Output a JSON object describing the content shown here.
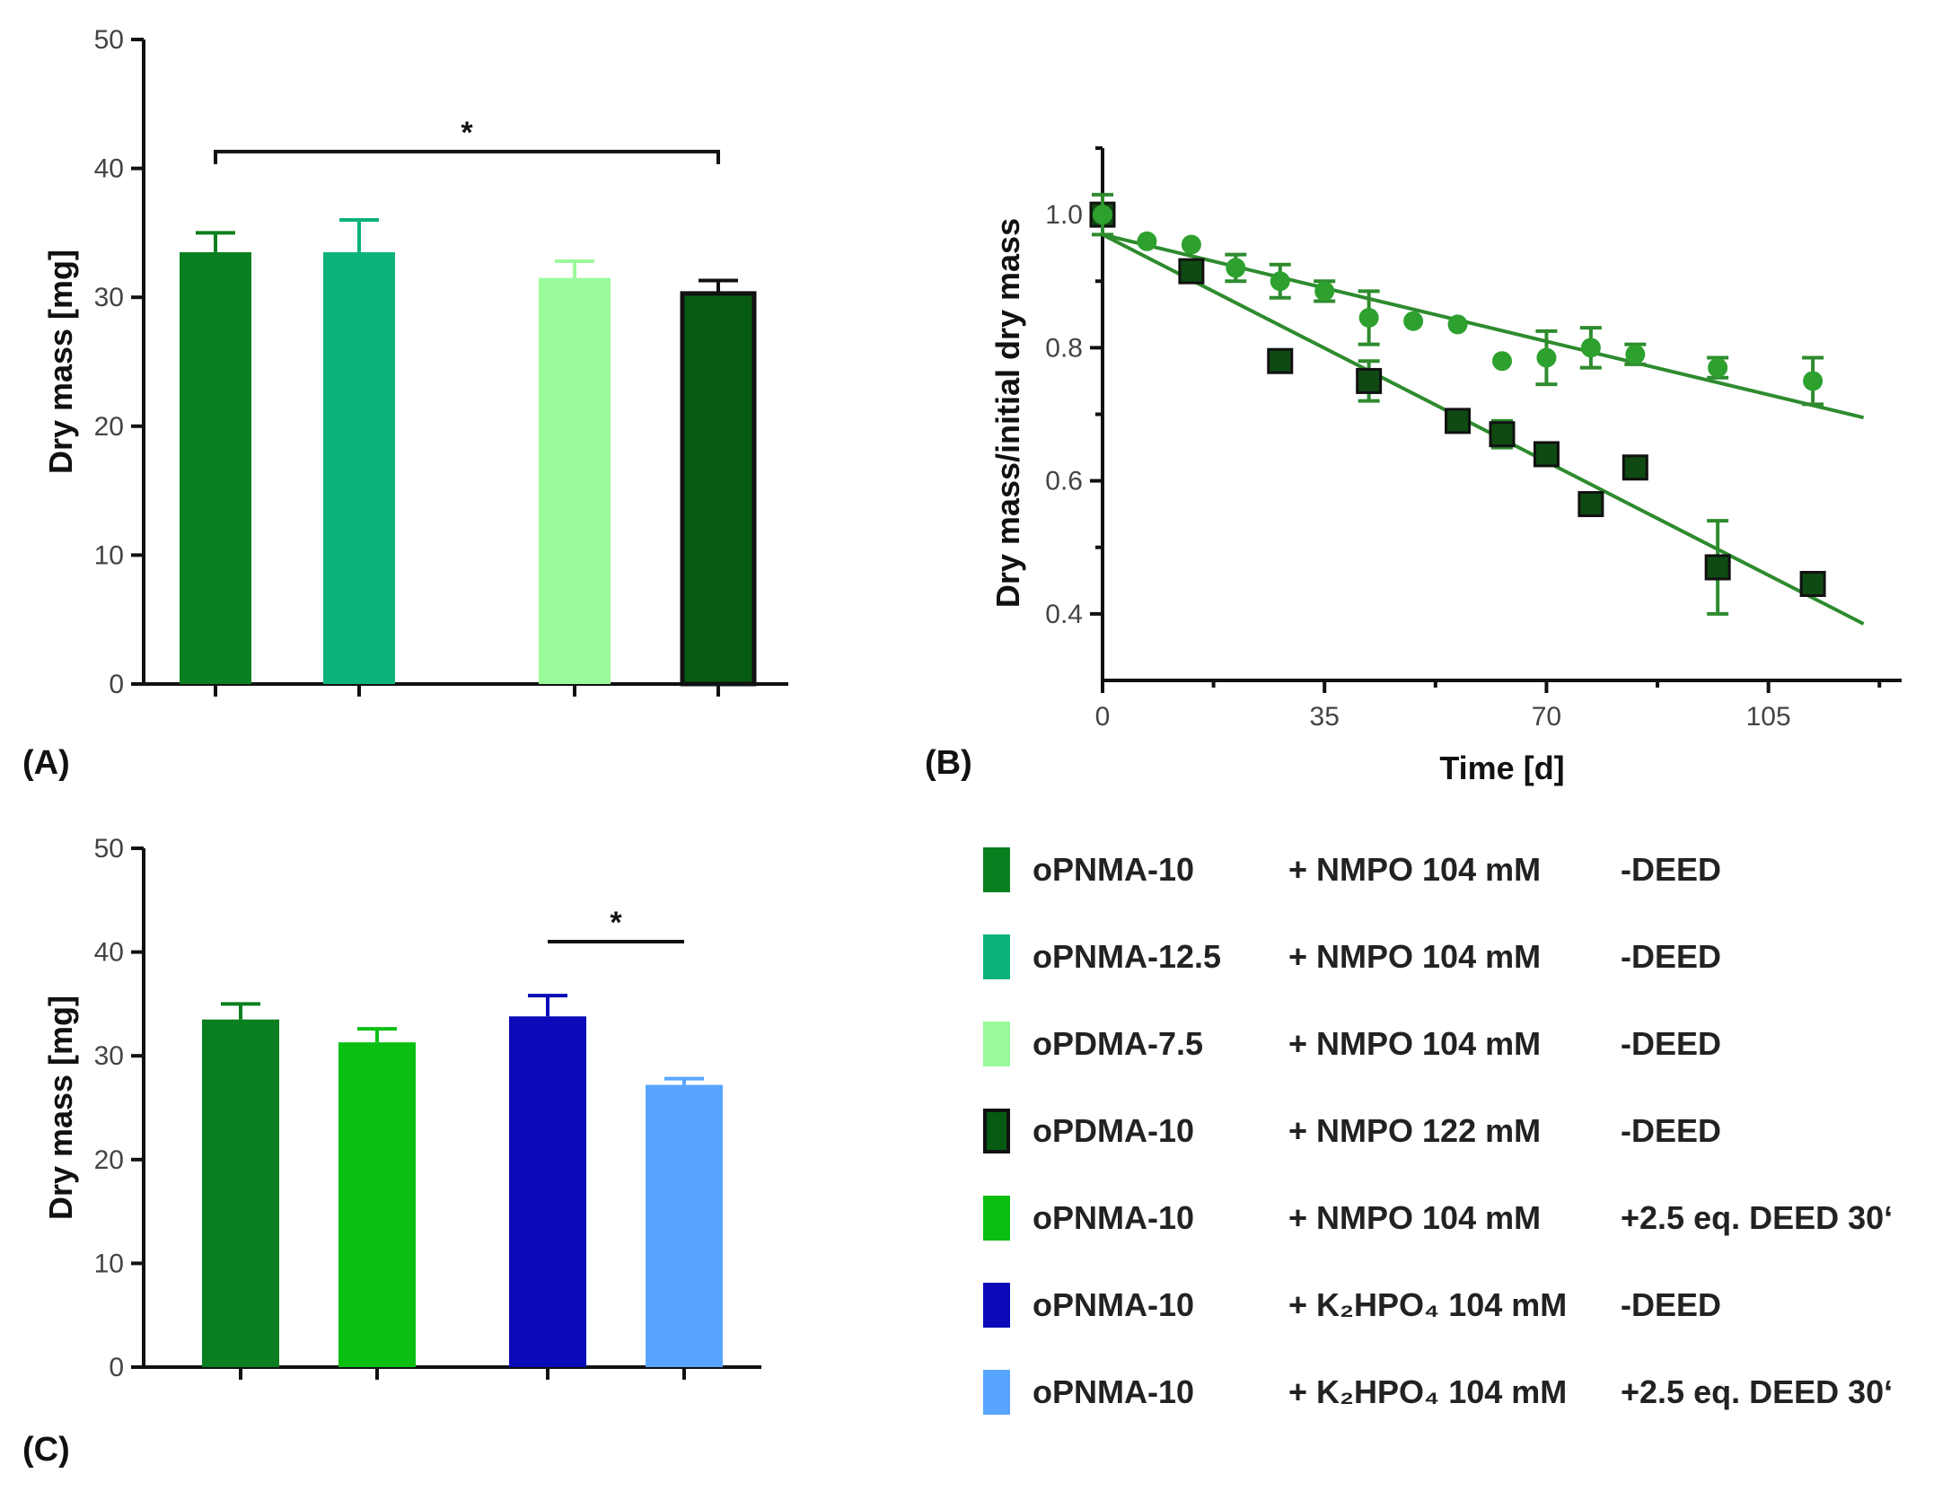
{
  "chart_data": [
    {
      "panel": "(A)",
      "type": "bar",
      "ylabel": "Dry mass [mg]",
      "ylim": [
        0,
        50
      ],
      "yticks": [
        "0",
        "10",
        "20",
        "30",
        "40",
        "50"
      ],
      "bars": [
        {
          "label": "oPNMA-10 + NMPO 104 mM -DEED",
          "value": 33.5,
          "err": 1.5,
          "color": "#0a7f1f",
          "slot": 0
        },
        {
          "label": "oPNMA-12.5 + NMPO 104 mM -DEED",
          "value": 33.5,
          "err": 2.5,
          "color": "#0bb37a",
          "slot": 1
        },
        {
          "label": "oPDMA-7.5 + NMPO 104 mM -DEED",
          "value": 31.5,
          "err": 1.3,
          "color": "#9afa9a",
          "slot": 2.5
        },
        {
          "label": "oPDMA-10 + NMPO 122 mM -DEED",
          "value": 30.3,
          "err": 1.0,
          "color": "#075a12",
          "slot": 3.5,
          "outlined": true
        }
      ],
      "significance": {
        "from_slot": 0,
        "to_slot": 3.5,
        "level": 41.3,
        "label": "*"
      }
    },
    {
      "panel": "(B)",
      "type": "scatter",
      "xlabel": "Time [d]",
      "ylabel": "Dry mass/initial dry mass",
      "xlim": [
        0,
        126
      ],
      "ylim": [
        0.3,
        1.1
      ],
      "xticks": [
        "0",
        "35",
        "70",
        "105"
      ],
      "yticks": [
        "0.4",
        "0.6",
        "0.8",
        "1.0"
      ],
      "series": [
        {
          "name": "circles",
          "marker": "circle",
          "color": "#2ea02e",
          "points": [
            [
              0,
              1.0,
              0.03
            ],
            [
              7,
              0.96,
              0
            ],
            [
              14,
              0.955,
              0
            ],
            [
              21,
              0.92,
              0.02
            ],
            [
              28,
              0.9,
              0.025
            ],
            [
              35,
              0.885,
              0.015
            ],
            [
              42,
              0.845,
              0.04
            ],
            [
              49,
              0.84,
              0
            ],
            [
              56,
              0.835,
              0
            ],
            [
              63,
              0.78,
              0
            ],
            [
              70,
              0.785,
              0.04
            ],
            [
              77,
              0.8,
              0.03
            ],
            [
              84,
              0.79,
              0.015
            ],
            [
              97,
              0.77,
              0.015
            ],
            [
              112,
              0.75,
              0.035
            ]
          ],
          "fit": [
            [
              0,
              0.97
            ],
            [
              120,
              0.695
            ]
          ]
        },
        {
          "name": "squares",
          "marker": "square",
          "color": "#0f4a12",
          "points": [
            [
              0,
              1.0,
              0
            ],
            [
              14,
              0.915,
              0
            ],
            [
              28,
              0.78,
              0
            ],
            [
              42,
              0.75,
              0.03
            ],
            [
              56,
              0.69,
              0
            ],
            [
              63,
              0.67,
              0.02
            ],
            [
              70,
              0.64,
              0
            ],
            [
              77,
              0.565,
              0
            ],
            [
              84,
              0.62,
              0
            ],
            [
              97,
              0.47,
              0.07
            ],
            [
              112,
              0.445,
              0
            ]
          ],
          "fit": [
            [
              0,
              0.97
            ],
            [
              120,
              0.385
            ]
          ]
        }
      ]
    },
    {
      "panel": "(C)",
      "type": "bar",
      "ylabel": "Dry mass [mg]",
      "ylim": [
        0,
        50
      ],
      "yticks": [
        "0",
        "10",
        "20",
        "30",
        "40",
        "50"
      ],
      "bars": [
        {
          "label": "oPNMA-10 + NMPO 104 mM -DEED",
          "value": 33.5,
          "err": 1.5,
          "color": "#0a7f1f",
          "slot": 0
        },
        {
          "label": "oPNMA-10 + NMPO 104 mM +2.5 eq. DEED 30‘",
          "value": 31.3,
          "err": 1.3,
          "color": "#0abf12",
          "slot": 1
        },
        {
          "label": "oPNMA-10 + K2HPO4 104 mM -DEED",
          "value": 33.8,
          "err": 2.0,
          "color": "#0a0ab8",
          "slot": 2.25
        },
        {
          "label": "oPNMA-10 + K2HPO4 104 mM +2.5 eq. DEED 30‘",
          "value": 27.2,
          "err": 0.6,
          "color": "#58a5ff",
          "slot": 3.25
        }
      ],
      "significance": {
        "from_slot": 2.25,
        "to_slot": 3.25,
        "level": 41.0,
        "label": "*"
      }
    }
  ],
  "legend": [
    {
      "color": "#0a7f1f",
      "name": "oPNMA-10",
      "additive": "+ NMPO 104 mM",
      "treatment": "-DEED"
    },
    {
      "color": "#0bb37a",
      "name": "oPNMA-12.5",
      "additive": "+ NMPO 104 mM",
      "treatment": "-DEED"
    },
    {
      "color": "#9afa9a",
      "name": "oPDMA-7.5",
      "additive": "+ NMPO 104 mM",
      "treatment": "-DEED"
    },
    {
      "color": "#075a12",
      "name": "oPDMA-10",
      "additive": "+ NMPO 122 mM",
      "treatment": "-DEED",
      "outlined": true
    },
    {
      "color": "#0abf12",
      "name": "oPNMA-10",
      "additive": "+ NMPO 104 mM",
      "treatment": "+2.5 eq. DEED 30‘"
    },
    {
      "color": "#0a0ab8",
      "name": "oPNMA-10",
      "additive": "+ K₂HPO₄ 104 mM",
      "treatment": "-DEED"
    },
    {
      "color": "#58a5ff",
      "name": "oPNMA-10",
      "additive": "+ K₂HPO₄ 104 mM",
      "treatment": "+2.5 eq. DEED 30‘"
    }
  ]
}
